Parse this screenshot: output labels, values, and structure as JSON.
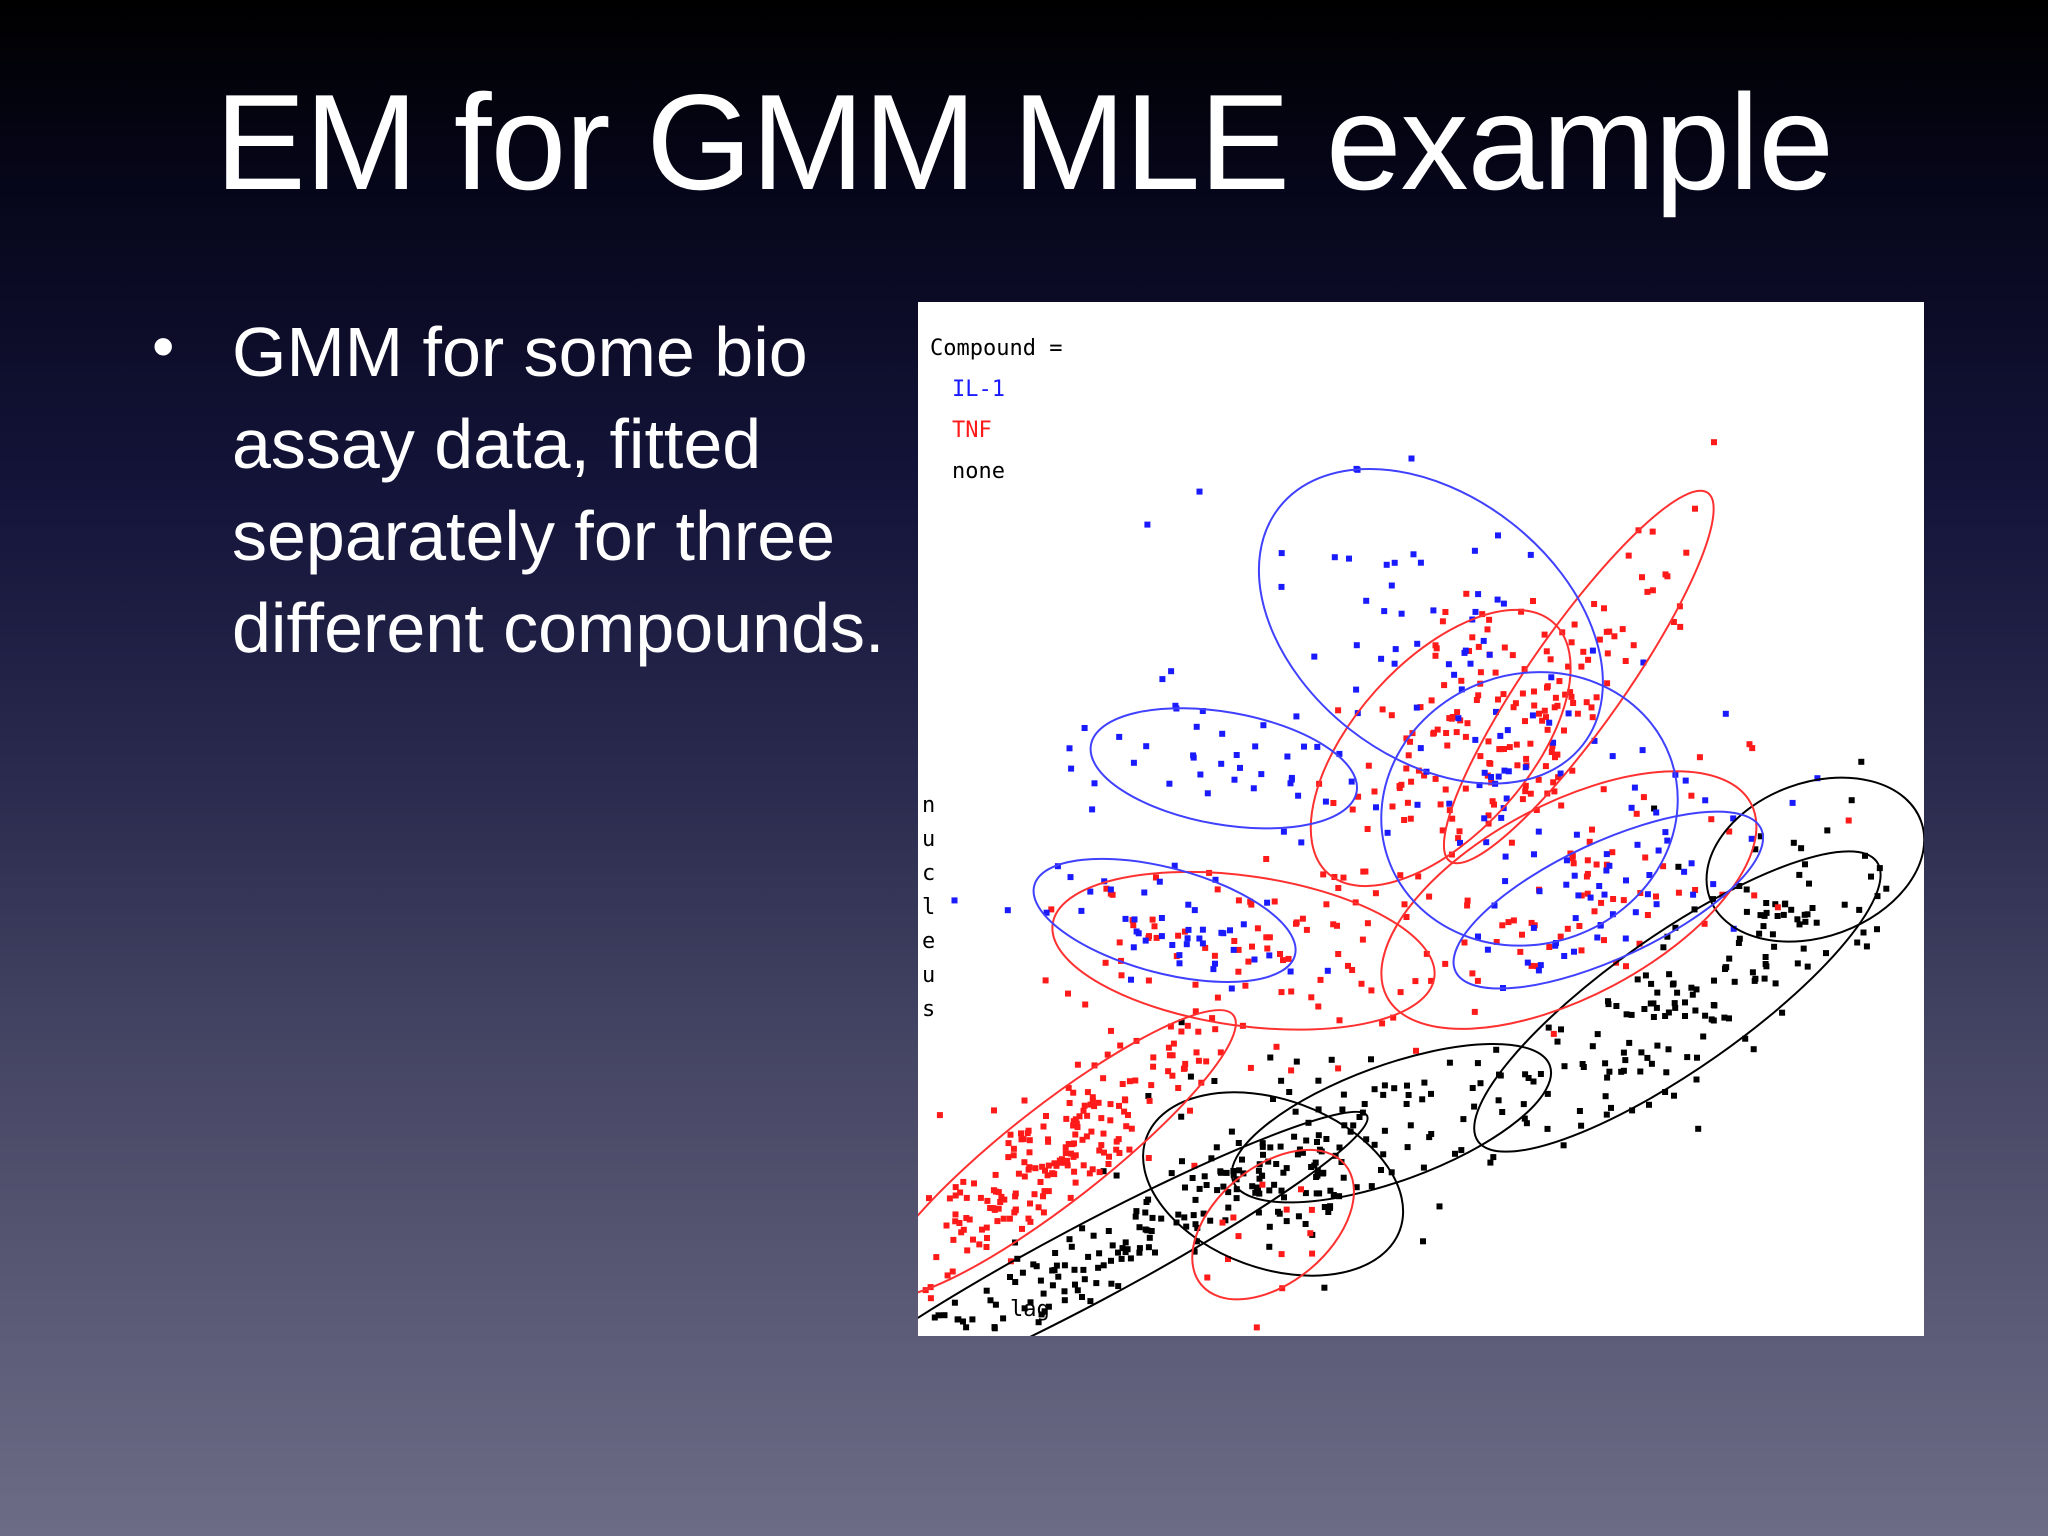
{
  "slide": {
    "title": "EM for GMM MLE example",
    "bullet": "GMM for some bio assay data, fitted separately for three different compounds."
  },
  "colors": {
    "IL-1": "#1a1aff",
    "TNF": "#ff1a1a",
    "none": "#000000",
    "ellipse_IL-1": "#4040ff",
    "ellipse_TNF": "#ff3030",
    "ellipse_none": "#000000"
  },
  "chart_data": {
    "type": "scatter",
    "ylabel": "nucleus",
    "xlabel": "lag",
    "legend": {
      "title": "Compound =",
      "placement": "top-left",
      "entries": [
        "IL-1",
        "TNF",
        "none"
      ]
    },
    "xlim": [
      0,
      1
    ],
    "ylim": [
      0,
      1
    ],
    "series": [
      {
        "name": "IL-1",
        "clusters": [
          {
            "x": 0.51,
            "y": 0.69,
            "sx": 0.07,
            "sy": 0.1,
            "angle": 52,
            "n": 60
          },
          {
            "x": 0.3,
            "y": 0.55,
            "sx": 0.03,
            "sy": 0.07,
            "angle": 80,
            "n": 40
          },
          {
            "x": 0.24,
            "y": 0.4,
            "sx": 0.028,
            "sy": 0.07,
            "angle": 75,
            "n": 45
          },
          {
            "x": 0.61,
            "y": 0.51,
            "sx": 0.08,
            "sy": 0.07,
            "angle": 20,
            "n": 40
          },
          {
            "x": 0.69,
            "y": 0.42,
            "sx": 0.09,
            "sy": 0.03,
            "angle": 25,
            "n": 40
          }
        ]
      },
      {
        "name": "TNF",
        "clusters": [
          {
            "x": 0.13,
            "y": 0.17,
            "sx": 0.12,
            "sy": 0.025,
            "angle": 38,
            "n": 220
          },
          {
            "x": 0.32,
            "y": 0.37,
            "sx": 0.04,
            "sy": 0.1,
            "angle": 82,
            "n": 70
          },
          {
            "x": 0.52,
            "y": 0.57,
            "sx": 0.09,
            "sy": 0.045,
            "angle": 48,
            "n": 110
          },
          {
            "x": 0.66,
            "y": 0.64,
            "sx": 0.12,
            "sy": 0.025,
            "angle": 55,
            "n": 70
          },
          {
            "x": 0.65,
            "y": 0.42,
            "sx": 0.11,
            "sy": 0.05,
            "angle": 28,
            "n": 80
          },
          {
            "x": 0.35,
            "y": 0.1,
            "sx": 0.05,
            "sy": 0.03,
            "angle": 40,
            "n": 15
          }
        ]
      },
      {
        "name": "none",
        "clusters": [
          {
            "x": 0.16,
            "y": 0.06,
            "sx": 0.17,
            "sy": 0.02,
            "angle": 28,
            "n": 170
          },
          {
            "x": 0.35,
            "y": 0.14,
            "sx": 0.045,
            "sy": 0.07,
            "angle": 70,
            "n": 60
          },
          {
            "x": 0.47,
            "y": 0.2,
            "sx": 0.09,
            "sy": 0.03,
            "angle": 20,
            "n": 60
          },
          {
            "x": 0.76,
            "y": 0.32,
            "sx": 0.13,
            "sy": 0.035,
            "angle": 35,
            "n": 140
          },
          {
            "x": 0.9,
            "y": 0.46,
            "sx": 0.06,
            "sy": 0.04,
            "angle": 20,
            "n": 20
          }
        ]
      }
    ]
  }
}
